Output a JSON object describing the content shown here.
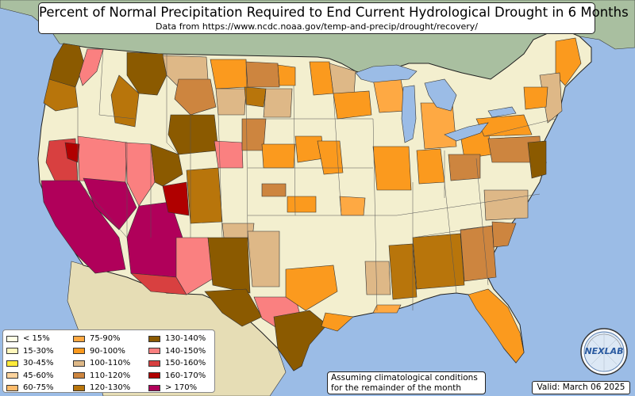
{
  "title": "Percent of Normal Precipitation Required to End Current Hydrological Drought in 6 Months",
  "subtitle": "Data from https://www.ncdc.noaa.gov/temp-and-precip/drought/recovery/",
  "legend": {
    "items": [
      {
        "label": "< 15%",
        "color": "#ffffe5"
      },
      {
        "label": "15-30%",
        "color": "#fff7bc"
      },
      {
        "label": "30-45%",
        "color": "#ffeb3b"
      },
      {
        "label": "45-60%",
        "color": "#fdd49e"
      },
      {
        "label": "60-75%",
        "color": "#fdbb6c"
      },
      {
        "label": "75-90%",
        "color": "#fea943"
      },
      {
        "label": "90-100%",
        "color": "#fb9a1e"
      },
      {
        "label": "100-110%",
        "color": "#deb887"
      },
      {
        "label": "110-120%",
        "color": "#cd853f"
      },
      {
        "label": "120-130%",
        "color": "#b8750b"
      },
      {
        "label": "130-140%",
        "color": "#8b5a00"
      },
      {
        "label": "140-150%",
        "color": "#fa8080"
      },
      {
        "label": "150-160%",
        "color": "#d84040"
      },
      {
        "label": "160-170%",
        "color": "#b00000"
      },
      {
        "label": "> 170%",
        "color": "#b0005a"
      }
    ]
  },
  "note": {
    "line1": "Assuming climatological conditions",
    "line2": "for the remainder of the month"
  },
  "valid": "Valid: March 06 2025",
  "logo": {
    "text": "NEXLAB"
  },
  "colors": {
    "ocean": "#9bbce6",
    "land_base": "#f3efcf",
    "canada": "#a9bfa0",
    "mexico": "#e6ddb5"
  }
}
